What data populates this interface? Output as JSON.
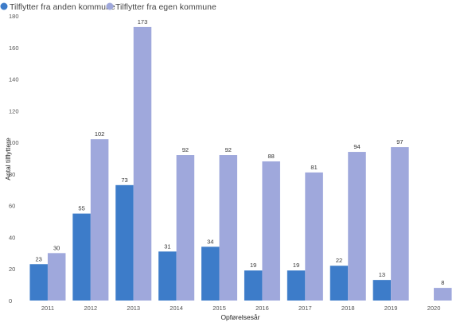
{
  "chart_data": {
    "type": "bar",
    "xlabel": "Opførelsesår",
    "ylabel": "Antal tilflyttere",
    "ylim": [
      0,
      180
    ],
    "yticks": [
      0,
      20,
      40,
      60,
      80,
      100,
      120,
      140,
      160,
      180
    ],
    "grid": false,
    "legend_position": "top-left",
    "categories": [
      "2011",
      "2012",
      "2013",
      "2014",
      "2015",
      "2016",
      "2017",
      "2018",
      "2019",
      "2020"
    ],
    "series": [
      {
        "name": "Tilflytter fra anden kommune",
        "color": "#3d7cc9",
        "values": [
          23,
          55,
          73,
          31,
          34,
          19,
          19,
          22,
          13,
          null
        ]
      },
      {
        "name": "Tilflytter fra egen kommune",
        "color": "#9fa8dc",
        "values": [
          30,
          102,
          173,
          92,
          92,
          88,
          81,
          94,
          97,
          8
        ]
      }
    ]
  }
}
